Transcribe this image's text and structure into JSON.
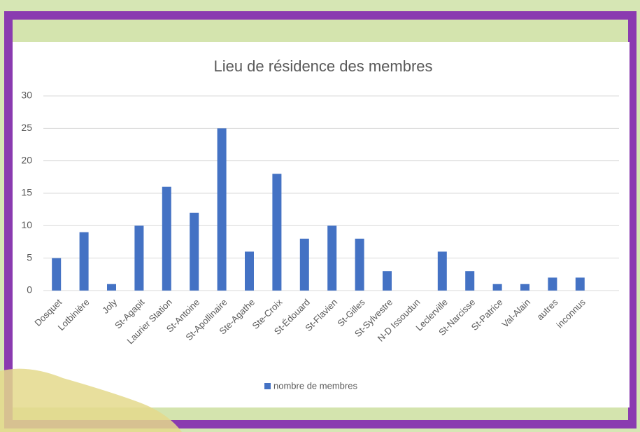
{
  "chart_data": {
    "type": "bar",
    "title": "Lieu de résidence des membres",
    "categories": [
      "Dosquet",
      "Lotbinière",
      "Joly",
      "St-Agapit",
      "Laurier Station",
      "St-Antoine",
      "St-Apollinaire",
      "Ste-Agathe",
      "Ste-Croix",
      "St-Édouard",
      "St-Flavien",
      "St-Gilles",
      "St-Sylvestre",
      "N-D Issoudun",
      "Leclerville",
      "St-Narcisse",
      "St-Patrice",
      "Val-Alain",
      "autres",
      "inconnus"
    ],
    "series": [
      {
        "name": "nombre de membres",
        "color": "#4472c4",
        "values": [
          5,
          9,
          1,
          10,
          16,
          12,
          25,
          6,
          18,
          8,
          10,
          8,
          3,
          0,
          6,
          3,
          1,
          1,
          2,
          2
        ]
      }
    ],
    "ylim": [
      0,
      30
    ],
    "yticks": [
      0,
      5,
      10,
      15,
      20,
      25,
      30
    ],
    "grid": true,
    "legend": "bottom"
  }
}
